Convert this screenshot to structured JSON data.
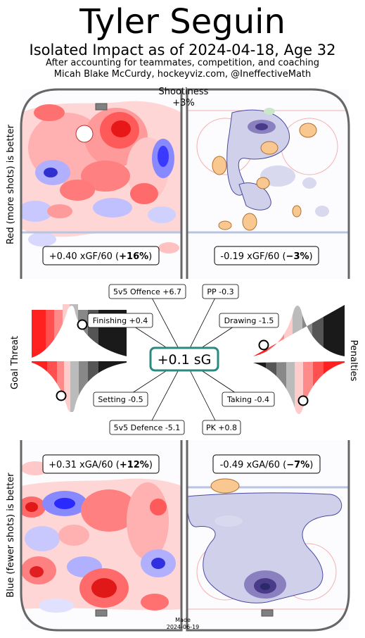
{
  "header": {
    "title": "Tyler Seguin",
    "subtitle": "Isolated Impact as of 2024-04-18, Age 32",
    "credit_line1": "After accounting for teammates, competition, and coaching",
    "credit_line2": "Micah Blake McCurdy, hockeyviz.com, @IneffectiveMath"
  },
  "side_labels": {
    "top_left": "Red (more shots) is better",
    "bottom_left": "Blue (fewer shots) is better",
    "middle_left": "Goal Threat",
    "middle_right": "Penalties"
  },
  "shootiness": {
    "label": "Shootiness",
    "value": "+3%"
  },
  "footer": {
    "made_label": "Made",
    "made_date": "2024-06-19"
  },
  "colors": {
    "red": "#ff2a2a",
    "blue": "#3a3aff",
    "orange": "#f5a85a",
    "purple": "#6a5aa8",
    "teal": "#2a8a80",
    "rink": "#666666"
  },
  "chart_data": {
    "type": "other",
    "total": "+0.1 sG",
    "rates": {
      "offence_5v5": {
        "text": "+0.40 xGF/60 (",
        "pct": "+16%",
        "close": ")"
      },
      "offence_pp": {
        "text": "-0.19 xGF/60 (",
        "pct": "−3%",
        "close": ")"
      },
      "defence_5v5": {
        "text": "+0.31 xGA/60 (",
        "pct": "+12%",
        "close": ")"
      },
      "defence_pk": {
        "text": "-0.49 xGA/60 (",
        "pct": "−7%",
        "close": ")"
      }
    },
    "components": [
      {
        "label": "5v5 Offence +6.7",
        "value": 6.7
      },
      {
        "label": "PP -0.3",
        "value": -0.3
      },
      {
        "label": "Finishing +0.4",
        "value": 0.4
      },
      {
        "label": "Drawing -1.5",
        "value": -1.5
      },
      {
        "label": "Setting -0.5",
        "value": -0.5
      },
      {
        "label": "Taking -0.4",
        "value": -0.4
      },
      {
        "label": "5v5 Defence -5.1",
        "value": -5.1
      },
      {
        "label": "PK +0.8",
        "value": 0.8
      }
    ]
  }
}
